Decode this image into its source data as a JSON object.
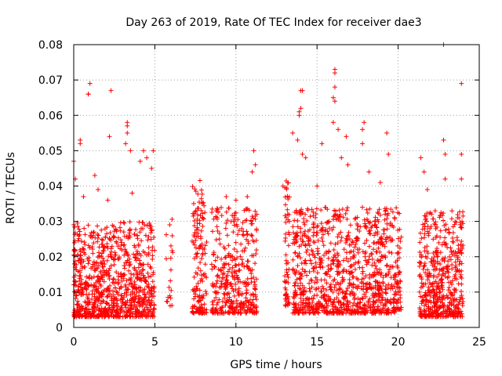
{
  "chart_data": {
    "type": "scatter",
    "title": "Day 263 of 2019, Rate Of TEC Index for receiver dae3",
    "xlabel": "GPS time / hours",
    "ylabel": "ROTI / TECUs",
    "xlim": [
      0,
      25
    ],
    "ylim": [
      0,
      0.08
    ],
    "xticks": [
      0,
      5,
      10,
      15,
      20,
      25
    ],
    "xtick_labels": [
      "0",
      "5",
      "10",
      "15",
      "20",
      "25"
    ],
    "yticks": [
      0,
      0.01,
      0.02,
      0.03,
      0.04,
      0.05,
      0.06,
      0.07,
      0.08
    ],
    "ytick_labels": [
      "0",
      "0.01",
      "0.02",
      "0.03",
      "0.04",
      "0.05",
      "0.06",
      "0.07",
      "0.08"
    ],
    "grid": true,
    "marker": "plus",
    "marker_color": "#ff0000",
    "clusters": [
      {
        "x_range": [
          0.0,
          5.0
        ],
        "y_range": [
          0.003,
          0.03
        ],
        "count": 900
      },
      {
        "x_range": [
          5.7,
          6.1
        ],
        "y_range": [
          0.006,
          0.032
        ],
        "count": 20
      },
      {
        "x_range": [
          7.3,
          8.2
        ],
        "y_range": [
          0.004,
          0.042
        ],
        "count": 160
      },
      {
        "x_range": [
          8.5,
          11.3
        ],
        "y_range": [
          0.004,
          0.034
        ],
        "count": 380
      },
      {
        "x_range": [
          13.0,
          13.3
        ],
        "y_range": [
          0.006,
          0.042
        ],
        "count": 60
      },
      {
        "x_range": [
          13.5,
          19.8
        ],
        "y_range": [
          0.004,
          0.034
        ],
        "count": 1000
      },
      {
        "x_range": [
          19.8,
          20.2
        ],
        "y_range": [
          0.005,
          0.036
        ],
        "count": 60
      },
      {
        "x_range": [
          21.3,
          24.0
        ],
        "y_range": [
          0.003,
          0.033
        ],
        "count": 500
      }
    ],
    "outliers": [
      [
        0.0,
        0.047
      ],
      [
        0.1,
        0.042
      ],
      [
        0.4,
        0.053
      ],
      [
        0.4,
        0.052
      ],
      [
        1.0,
        0.069
      ],
      [
        0.9,
        0.066
      ],
      [
        0.9,
        0.066
      ],
      [
        2.3,
        0.067
      ],
      [
        1.3,
        0.043
      ],
      [
        2.2,
        0.054
      ],
      [
        3.3,
        0.058
      ],
      [
        3.3,
        0.057
      ],
      [
        3.3,
        0.055
      ],
      [
        3.2,
        0.052
      ],
      [
        3.5,
        0.05
      ],
      [
        4.3,
        0.05
      ],
      [
        4.5,
        0.048
      ],
      [
        4.1,
        0.047
      ],
      [
        4.9,
        0.05
      ],
      [
        4.8,
        0.045
      ],
      [
        11.1,
        0.05
      ],
      [
        11.2,
        0.046
      ],
      [
        11.0,
        0.044
      ],
      [
        13.5,
        0.055
      ],
      [
        13.9,
        0.061
      ],
      [
        13.9,
        0.06
      ],
      [
        14.1,
        0.067
      ],
      [
        14.0,
        0.067
      ],
      [
        14.0,
        0.062
      ],
      [
        13.8,
        0.053
      ],
      [
        14.1,
        0.049
      ],
      [
        14.3,
        0.048
      ],
      [
        15.3,
        0.052
      ],
      [
        16.1,
        0.073
      ],
      [
        16.1,
        0.072
      ],
      [
        16.1,
        0.068
      ],
      [
        16.0,
        0.065
      ],
      [
        16.1,
        0.064
      ],
      [
        16.0,
        0.058
      ],
      [
        16.3,
        0.056
      ],
      [
        16.8,
        0.054
      ],
      [
        16.5,
        0.048
      ],
      [
        16.9,
        0.046
      ],
      [
        17.9,
        0.058
      ],
      [
        17.8,
        0.056
      ],
      [
        17.8,
        0.052
      ],
      [
        18.2,
        0.044
      ],
      [
        19.3,
        0.055
      ],
      [
        19.4,
        0.049
      ],
      [
        21.4,
        0.048
      ],
      [
        21.6,
        0.044
      ],
      [
        22.8,
        0.08
      ],
      [
        22.8,
        0.053
      ],
      [
        22.9,
        0.049
      ],
      [
        22.9,
        0.042
      ],
      [
        23.9,
        0.069
      ],
      [
        23.9,
        0.049
      ],
      [
        23.9,
        0.042
      ],
      [
        1.5,
        0.039
      ],
      [
        0.6,
        0.037
      ],
      [
        2.1,
        0.036
      ],
      [
        3.6,
        0.038
      ],
      [
        9.4,
        0.037
      ],
      [
        10.0,
        0.036
      ],
      [
        10.7,
        0.037
      ],
      [
        12.9,
        0.04
      ],
      [
        15.0,
        0.04
      ],
      [
        18.9,
        0.041
      ],
      [
        21.8,
        0.039
      ]
    ]
  }
}
